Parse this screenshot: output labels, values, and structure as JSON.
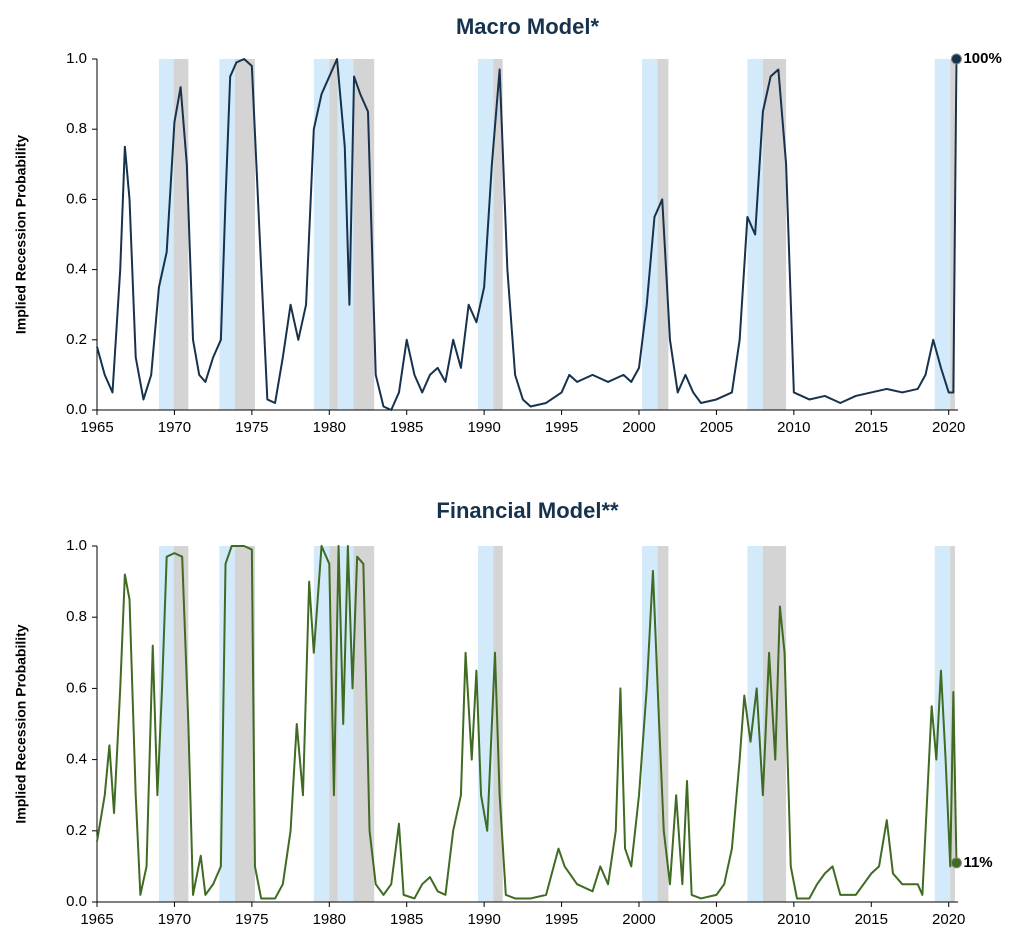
{
  "chart_data": [
    {
      "type": "line",
      "title": "Macro Model*",
      "y_label": "Implied Recession Probability",
      "color": "#17324d",
      "label_color": "#17324d",
      "x": [
        1965,
        1965.5,
        1966,
        1966.5,
        1966.8,
        1967.1,
        1967.5,
        1968,
        1968.5,
        1969,
        1969.5,
        1970,
        1970.4,
        1970.8,
        1971.2,
        1971.6,
        1972,
        1972.5,
        1973,
        1973.3,
        1973.6,
        1974,
        1974.5,
        1975,
        1975.5,
        1976,
        1976.5,
        1977,
        1977.5,
        1978,
        1978.5,
        1979,
        1979.5,
        1980,
        1980.5,
        1981,
        1981.3,
        1981.6,
        1982,
        1982.5,
        1983,
        1983.5,
        1984,
        1984.5,
        1985,
        1985.5,
        1986,
        1986.5,
        1987,
        1987.5,
        1988,
        1988.5,
        1989,
        1989.5,
        1990,
        1990.5,
        1991,
        1991.5,
        1992,
        1992.5,
        1993,
        1994,
        1995,
        1995.5,
        1996,
        1997,
        1998,
        1999,
        1999.5,
        2000,
        2000.5,
        2001,
        2001.5,
        2002,
        2002.5,
        2003,
        2003.5,
        2004,
        2005,
        2006,
        2006.5,
        2007,
        2007.5,
        2008,
        2008.5,
        2009,
        2009.5,
        2010,
        2011,
        2012,
        2013,
        2014,
        2015,
        2016,
        2017,
        2018,
        2018.5,
        2019,
        2019.5,
        2020,
        2020.3,
        2020.5
      ],
      "values": [
        0.18,
        0.1,
        0.05,
        0.4,
        0.75,
        0.6,
        0.15,
        0.03,
        0.1,
        0.35,
        0.45,
        0.82,
        0.92,
        0.7,
        0.2,
        0.1,
        0.08,
        0.15,
        0.2,
        0.6,
        0.95,
        0.99,
        1.0,
        0.98,
        0.5,
        0.03,
        0.02,
        0.15,
        0.3,
        0.2,
        0.3,
        0.8,
        0.9,
        0.95,
        1.0,
        0.75,
        0.3,
        0.95,
        0.9,
        0.85,
        0.1,
        0.01,
        0.0,
        0.05,
        0.2,
        0.1,
        0.05,
        0.1,
        0.12,
        0.08,
        0.2,
        0.12,
        0.3,
        0.25,
        0.35,
        0.7,
        0.97,
        0.4,
        0.1,
        0.03,
        0.01,
        0.02,
        0.05,
        0.1,
        0.08,
        0.1,
        0.08,
        0.1,
        0.08,
        0.12,
        0.3,
        0.55,
        0.6,
        0.2,
        0.05,
        0.1,
        0.05,
        0.02,
        0.03,
        0.05,
        0.2,
        0.55,
        0.5,
        0.85,
        0.95,
        0.97,
        0.7,
        0.05,
        0.03,
        0.04,
        0.02,
        0.04,
        0.05,
        0.06,
        0.05,
        0.06,
        0.1,
        0.2,
        0.12,
        0.05,
        0.05,
        1.0
      ],
      "end_label": {
        "value": 1.0,
        "label": "100%"
      },
      "xlim": [
        1965,
        2020.6
      ],
      "ylim": [
        0,
        1
      ],
      "xticks": [
        1965,
        1970,
        1975,
        1980,
        1985,
        1990,
        1995,
        2000,
        2005,
        2010,
        2015,
        2020
      ],
      "yticks": [
        {
          "value": 0,
          "label": "0.0"
        },
        {
          "value": 0.2,
          "label": "0.2"
        },
        {
          "value": 0.4,
          "label": "0.4"
        },
        {
          "value": 0.6,
          "label": "0.6"
        },
        {
          "value": 0.8,
          "label": "0.8"
        },
        {
          "value": 1,
          "label": "1.0"
        }
      ],
      "bands": [
        {
          "start": 1969.0,
          "end": 1969.95,
          "color": "#d3eafb"
        },
        {
          "start": 1969.95,
          "end": 1970.9,
          "color": "#d4d4d4"
        },
        {
          "start": 1972.9,
          "end": 1973.9,
          "color": "#d3eafb"
        },
        {
          "start": 1973.9,
          "end": 1975.2,
          "color": "#d4d4d4"
        },
        {
          "start": 1979.0,
          "end": 1980.0,
          "color": "#d3eafb"
        },
        {
          "start": 1980.0,
          "end": 1980.55,
          "color": "#d4d4d4"
        },
        {
          "start": 1980.55,
          "end": 1981.55,
          "color": "#d3eafb"
        },
        {
          "start": 1981.55,
          "end": 1982.9,
          "color": "#d4d4d4"
        },
        {
          "start": 1989.6,
          "end": 1990.6,
          "color": "#d3eafb"
        },
        {
          "start": 1990.6,
          "end": 1991.2,
          "color": "#d4d4d4"
        },
        {
          "start": 2000.2,
          "end": 2001.2,
          "color": "#d3eafb"
        },
        {
          "start": 2001.2,
          "end": 2001.9,
          "color": "#d4d4d4"
        },
        {
          "start": 2007.0,
          "end": 2008.0,
          "color": "#d3eafb"
        },
        {
          "start": 2008.0,
          "end": 2009.5,
          "color": "#d4d4d4"
        },
        {
          "start": 2019.1,
          "end": 2020.1,
          "color": "#d3eafb"
        },
        {
          "start": 2020.1,
          "end": 2020.4,
          "color": "#d4d4d4"
        }
      ]
    },
    {
      "type": "line",
      "title": "Financial Model**",
      "y_label": "Implied Recession Probability",
      "color": "#3f6b22",
      "label_color": "#5b8f2f",
      "x": [
        1965,
        1965.5,
        1965.8,
        1966.1,
        1966.5,
        1966.8,
        1967.1,
        1967.5,
        1967.8,
        1968.2,
        1968.6,
        1968.9,
        1969.2,
        1969.5,
        1970,
        1970.5,
        1970.9,
        1971.2,
        1971.7,
        1972,
        1972.5,
        1973,
        1973.3,
        1973.7,
        1974.5,
        1975,
        1975.2,
        1975.6,
        1976.5,
        1977,
        1977.5,
        1977.9,
        1978.3,
        1978.7,
        1979,
        1979.5,
        1980,
        1980.3,
        1980.6,
        1980.9,
        1981.2,
        1981.5,
        1981.8,
        1982.2,
        1982.6,
        1983,
        1983.5,
        1984,
        1984.5,
        1984.8,
        1985.5,
        1986,
        1986.5,
        1987,
        1987.5,
        1988,
        1988.5,
        1988.8,
        1989.2,
        1989.5,
        1989.8,
        1990.2,
        1990.7,
        1991,
        1991.4,
        1992,
        1993,
        1994,
        1994.8,
        1995.2,
        1996,
        1997,
        1997.5,
        1998,
        1998.5,
        1998.8,
        1999.1,
        1999.5,
        2000,
        2000.5,
        2000.9,
        2001.3,
        2001.6,
        2002,
        2002.4,
        2002.8,
        2003.1,
        2003.4,
        2004,
        2005,
        2005.5,
        2006,
        2006.5,
        2006.8,
        2007.2,
        2007.6,
        2008,
        2008.4,
        2008.8,
        2009.1,
        2009.4,
        2009.8,
        2010.2,
        2011,
        2011.5,
        2012,
        2012.5,
        2013,
        2014,
        2014.5,
        2015,
        2015.5,
        2016,
        2016.4,
        2017,
        2017.5,
        2018,
        2018.3,
        2018.9,
        2019.2,
        2019.5,
        2019.8,
        2020.1,
        2020.3,
        2020.5
      ],
      "values": [
        0.17,
        0.3,
        0.44,
        0.25,
        0.6,
        0.92,
        0.85,
        0.3,
        0.02,
        0.1,
        0.72,
        0.3,
        0.6,
        0.97,
        0.98,
        0.97,
        0.5,
        0.02,
        0.13,
        0.02,
        0.05,
        0.1,
        0.95,
        1.0,
        1.0,
        0.99,
        0.1,
        0.01,
        0.01,
        0.05,
        0.2,
        0.5,
        0.3,
        0.9,
        0.7,
        1.0,
        0.95,
        0.3,
        1.0,
        0.5,
        1.0,
        0.6,
        0.97,
        0.95,
        0.2,
        0.05,
        0.02,
        0.05,
        0.22,
        0.02,
        0.01,
        0.05,
        0.07,
        0.03,
        0.02,
        0.2,
        0.3,
        0.7,
        0.4,
        0.65,
        0.3,
        0.2,
        0.7,
        0.3,
        0.02,
        0.01,
        0.01,
        0.02,
        0.15,
        0.1,
        0.05,
        0.03,
        0.1,
        0.05,
        0.2,
        0.6,
        0.15,
        0.1,
        0.3,
        0.6,
        0.93,
        0.5,
        0.2,
        0.05,
        0.3,
        0.05,
        0.34,
        0.02,
        0.01,
        0.02,
        0.05,
        0.15,
        0.4,
        0.58,
        0.45,
        0.6,
        0.3,
        0.7,
        0.4,
        0.83,
        0.7,
        0.1,
        0.01,
        0.01,
        0.05,
        0.08,
        0.1,
        0.02,
        0.02,
        0.05,
        0.08,
        0.1,
        0.23,
        0.08,
        0.05,
        0.05,
        0.05,
        0.02,
        0.55,
        0.4,
        0.65,
        0.4,
        0.1,
        0.59,
        0.11
      ],
      "end_label": {
        "value": 0.11,
        "label": "11%"
      },
      "xlim": [
        1965,
        2020.6
      ],
      "ylim": [
        0,
        1
      ],
      "xticks": [
        1965,
        1970,
        1975,
        1980,
        1985,
        1990,
        1995,
        2000,
        2005,
        2010,
        2015,
        2020
      ],
      "yticks": [
        {
          "value": 0,
          "label": "0.0"
        },
        {
          "value": 0.2,
          "label": "0.2"
        },
        {
          "value": 0.4,
          "label": "0.4"
        },
        {
          "value": 0.6,
          "label": "0.6"
        },
        {
          "value": 0.8,
          "label": "0.8"
        },
        {
          "value": 1,
          "label": "1.0"
        }
      ],
      "bands": [
        {
          "start": 1969.0,
          "end": 1969.95,
          "color": "#d3eafb"
        },
        {
          "start": 1969.95,
          "end": 1970.9,
          "color": "#d4d4d4"
        },
        {
          "start": 1972.9,
          "end": 1973.9,
          "color": "#d3eafb"
        },
        {
          "start": 1973.9,
          "end": 1975.2,
          "color": "#d4d4d4"
        },
        {
          "start": 1979.0,
          "end": 1980.0,
          "color": "#d3eafb"
        },
        {
          "start": 1980.0,
          "end": 1980.55,
          "color": "#d4d4d4"
        },
        {
          "start": 1980.55,
          "end": 1981.55,
          "color": "#d3eafb"
        },
        {
          "start": 1981.55,
          "end": 1982.9,
          "color": "#d4d4d4"
        },
        {
          "start": 1989.6,
          "end": 1990.6,
          "color": "#d3eafb"
        },
        {
          "start": 1990.6,
          "end": 1991.2,
          "color": "#d4d4d4"
        },
        {
          "start": 2000.2,
          "end": 2001.2,
          "color": "#d3eafb"
        },
        {
          "start": 2001.2,
          "end": 2001.9,
          "color": "#d4d4d4"
        },
        {
          "start": 2007.0,
          "end": 2008.0,
          "color": "#d3eafb"
        },
        {
          "start": 2008.0,
          "end": 2009.5,
          "color": "#d4d4d4"
        },
        {
          "start": 2019.1,
          "end": 2020.1,
          "color": "#d3eafb"
        },
        {
          "start": 2020.1,
          "end": 2020.4,
          "color": "#d4d4d4"
        }
      ]
    }
  ]
}
